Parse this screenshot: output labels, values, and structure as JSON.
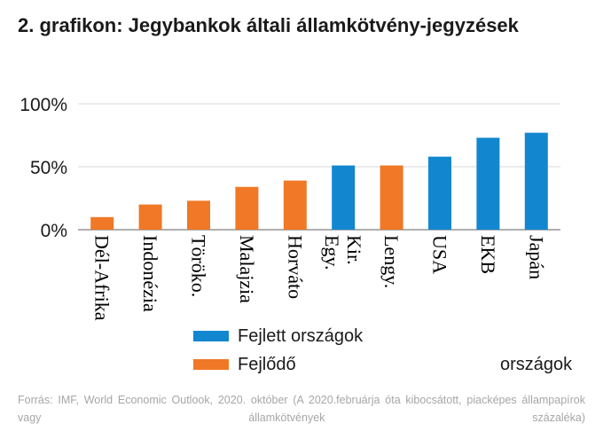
{
  "title": "2. grafikon: Jegybankok általi államkötvény-jegyzések",
  "chart_data": {
    "type": "bar",
    "categories": [
      "Dél-Afrika",
      "Indonézia",
      "Törökо.",
      "Malajzia",
      "Horváto",
      "Egy. Kir.",
      "Lengy.",
      "USA",
      "EKB",
      "Japán"
    ],
    "values": [
      10,
      20,
      23,
      34,
      39,
      51,
      51,
      58,
      73,
      77
    ],
    "series_group": [
      "developing",
      "developing",
      "developing",
      "developing",
      "developing",
      "developed",
      "developing",
      "developed",
      "developed",
      "developed"
    ],
    "ylim": [
      0,
      100
    ],
    "yticks": [
      0,
      50,
      100
    ],
    "ytick_labels": [
      "0%",
      "50%",
      "100%"
    ],
    "grid": true,
    "colors": {
      "developed": "#1287cf",
      "developing": "#f07826",
      "grid": "#d9d9d9",
      "axis": "#7f7f7f"
    },
    "legend": {
      "developed_label": "Fejlett országok",
      "developing_label_part1": "Fejlődő",
      "developing_label_part2": "országok"
    }
  },
  "source": "Forrás: IMF, World Economic Outlook, 2020. október (A 2020.februárja óta kibocsátott, piacképes állampapírok vagy államkötvények százaléka)"
}
